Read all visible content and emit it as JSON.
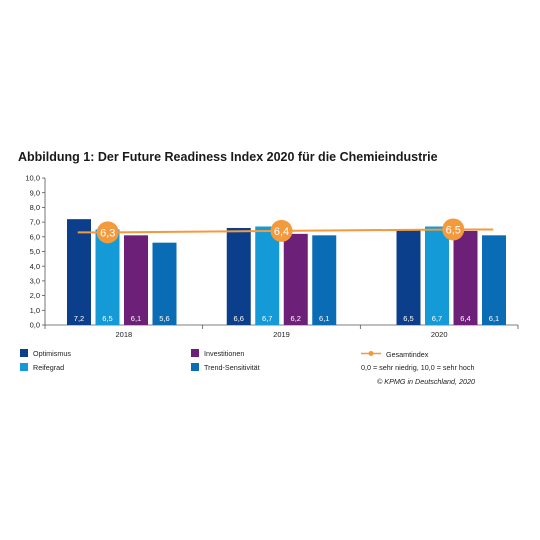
{
  "title": "Abbildung 1: Der Future Readiness Index 2020 für die Chemieindustrie",
  "notes": {
    "scale": "0,0 = sehr niedrig, 10,0 = sehr hoch",
    "copyright": "© KPMG in Deutschland, 2020"
  },
  "colors": {
    "optimismus": "#0b3f8c",
    "reifegrad": "#149ad7",
    "investitionen": "#6d2077",
    "trend": "#0b6cb6",
    "gesamtindex": "#f39a3c",
    "axis": "#555555"
  },
  "chart_data": {
    "type": "bar",
    "categories": [
      "2018",
      "2019",
      "2020"
    ],
    "ylim": [
      0,
      10
    ],
    "yticks": [
      "0,0",
      "1,0",
      "2,0",
      "3,0",
      "4,0",
      "5,0",
      "6,0",
      "7,0",
      "8,0",
      "9,0",
      "10,0"
    ],
    "series": [
      {
        "name": "Optimismus",
        "values": [
          7.2,
          6.6,
          6.5
        ],
        "labels": [
          "7,2",
          "6,6",
          "6,5"
        ]
      },
      {
        "name": "Reifegrad",
        "values": [
          6.5,
          6.7,
          6.7
        ],
        "labels": [
          "6,5",
          "6,7",
          "6,7"
        ]
      },
      {
        "name": "Investitionen",
        "values": [
          6.1,
          6.2,
          6.4
        ],
        "labels": [
          "6,1",
          "6,2",
          "6,4"
        ]
      },
      {
        "name": "Trend-Sensitivität",
        "values": [
          5.6,
          6.1,
          6.1
        ],
        "labels": [
          "5,6",
          "6,1",
          "6,1"
        ]
      }
    ],
    "line": {
      "name": "Gesamtindex",
      "values": [
        6.3,
        6.4,
        6.5
      ],
      "labels": [
        "6,3",
        "6,4",
        "6,5"
      ]
    }
  }
}
